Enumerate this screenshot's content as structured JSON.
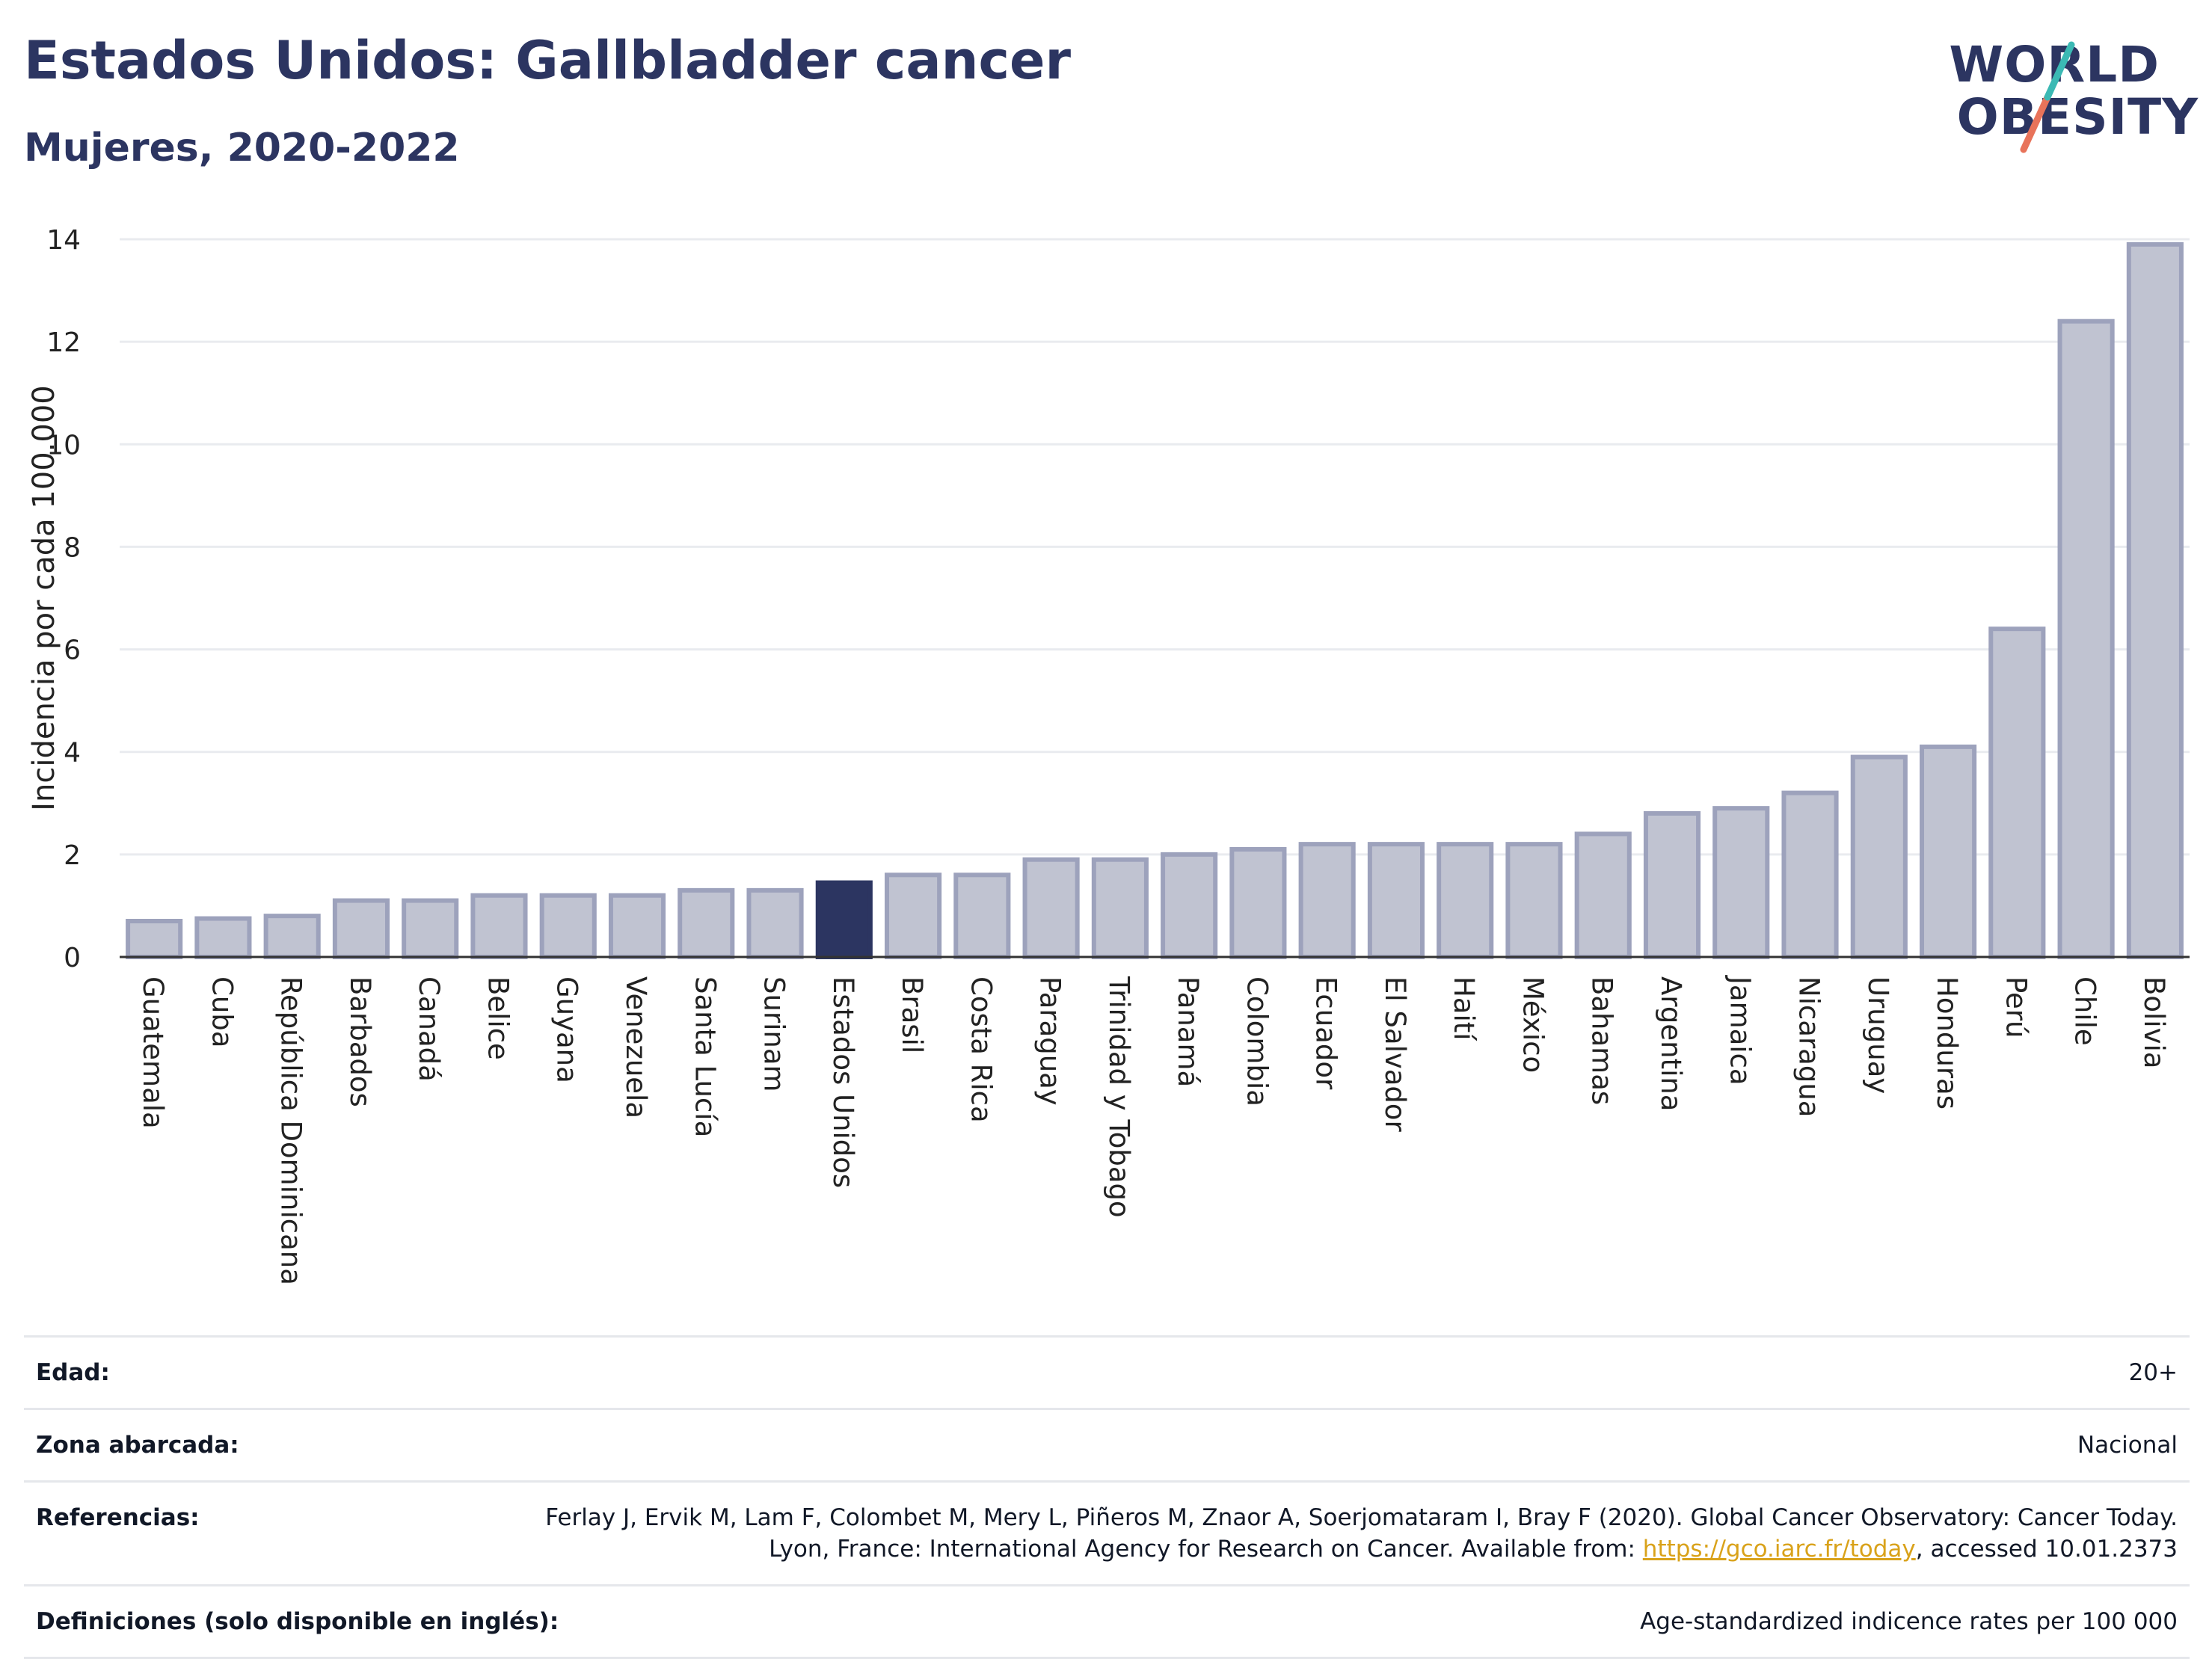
{
  "header": {
    "title": "Estados Unidos: Gallbladder cancer",
    "subtitle": "Mujeres, 2020-2022"
  },
  "logo": {
    "line1": "WORLD",
    "line2": "OBESITY",
    "accent_teal": "#3bb9b4",
    "accent_coral": "#e8735a"
  },
  "colors": {
    "bar": "#c0c3d1",
    "bar_edge": "#9da2bc",
    "highlight": "#2c3561",
    "grid": "#e9ebef"
  },
  "chart_data": {
    "type": "bar",
    "title": "Estados Unidos: Gallbladder cancer",
    "subtitle": "Mujeres, 2020-2022",
    "xlabel": "",
    "ylabel": "Incidencia por cada 100.000",
    "ylim": [
      0,
      14
    ],
    "yticks": [
      0,
      2,
      4,
      6,
      8,
      10,
      12,
      14
    ],
    "grid": true,
    "highlight": "Estados Unidos",
    "categories": [
      "Guatemala",
      "Cuba",
      "República Dominicana",
      "Barbados",
      "Canadá",
      "Belice",
      "Guyana",
      "Venezuela",
      "Santa Lucía",
      "Surinam",
      "Estados Unidos",
      "Brasil",
      "Costa Rica",
      "Paraguay",
      "Trinidad y Tobago",
      "Panamá",
      "Colombia",
      "Ecuador",
      "El Salvador",
      "Haití",
      "México",
      "Bahamas",
      "Argentina",
      "Jamaica",
      "Nicaragua",
      "Uruguay",
      "Honduras",
      "Perú",
      "Chile",
      "Bolivia"
    ],
    "values": [
      0.7,
      0.75,
      0.8,
      1.1,
      1.1,
      1.2,
      1.2,
      1.2,
      1.3,
      1.3,
      1.45,
      1.6,
      1.6,
      1.9,
      1.9,
      2.0,
      2.1,
      2.2,
      2.2,
      2.2,
      2.2,
      2.4,
      2.8,
      2.9,
      3.2,
      3.9,
      4.1,
      6.4,
      12.4,
      13.9
    ]
  },
  "info": [
    {
      "label": "Edad:",
      "value": "20+"
    },
    {
      "label": "Zona abarcada:",
      "value": "Nacional"
    },
    {
      "label": "Referencias:",
      "value_pre": "Ferlay J, Ervik M, Lam F, Colombet M, Mery L, Piñeros M, Znaor A, Soerjomataram I, Bray F (2020). Global Cancer Observatory: Cancer Today. Lyon, France: International Agency for Research on Cancer. Available from: ",
      "link": "https://gco.iarc.fr/today",
      "value_post": ", accessed 10.01.2373"
    },
    {
      "label": "Definiciones (solo disponible en inglés):",
      "value": "Age-standardized indicence rates per 100 000"
    }
  ]
}
